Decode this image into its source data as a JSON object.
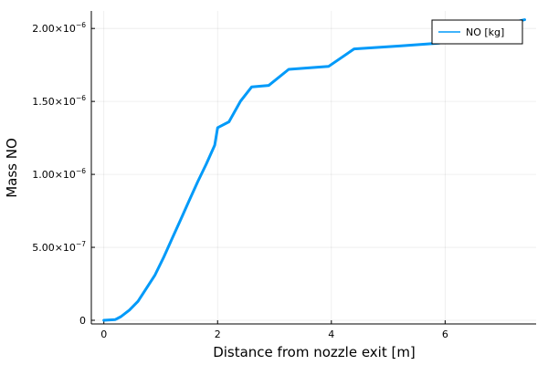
{
  "chart_data": {
    "type": "line",
    "title": "",
    "xlabel": "Distance from nozzle exit [m]",
    "ylabel": "Mass NO",
    "xlim": [
      -0.22,
      7.6
    ],
    "ylim": [
      -2.5e-08,
      2.12e-06
    ],
    "grid": true,
    "legend_position": "top-right",
    "x_ticks": [
      {
        "value": 0,
        "label": "0"
      },
      {
        "value": 2,
        "label": "2"
      },
      {
        "value": 4,
        "label": "4"
      },
      {
        "value": 6,
        "label": "6"
      }
    ],
    "y_ticks": [
      {
        "value": 0,
        "mantissa": "0",
        "exponent": ""
      },
      {
        "value": 5e-07,
        "mantissa": "5.00×10",
        "exponent": "−7"
      },
      {
        "value": 1e-06,
        "mantissa": "1.00×10",
        "exponent": "−6"
      },
      {
        "value": 1.5e-06,
        "mantissa": "1.50×10",
        "exponent": "−6"
      },
      {
        "value": 2e-06,
        "mantissa": "2.00×10",
        "exponent": "−6"
      }
    ],
    "series": [
      {
        "name": "NO [kg]",
        "color": "#009af9",
        "points": [
          [
            0.0,
            0.0
          ],
          [
            0.2,
            5e-09
          ],
          [
            0.3,
            2.5e-08
          ],
          [
            0.45,
            7e-08
          ],
          [
            0.6,
            1.3e-07
          ],
          [
            0.75,
            2.2e-07
          ],
          [
            0.9,
            3.1e-07
          ],
          [
            1.05,
            4.3e-07
          ],
          [
            1.2,
            5.6e-07
          ],
          [
            1.35,
            6.9e-07
          ],
          [
            1.5,
            8.2e-07
          ],
          [
            1.65,
            9.5e-07
          ],
          [
            1.8,
            1.07e-06
          ],
          [
            1.95,
            1.2e-06
          ],
          [
            2.0,
            1.32e-06
          ],
          [
            2.2,
            1.36e-06
          ],
          [
            2.4,
            1.5e-06
          ],
          [
            2.6,
            1.6e-06
          ],
          [
            2.9,
            1.61e-06
          ],
          [
            3.25,
            1.72e-06
          ],
          [
            3.95,
            1.74e-06
          ],
          [
            4.4,
            1.86e-06
          ],
          [
            5.2,
            1.88e-06
          ],
          [
            5.9,
            1.9e-06
          ],
          [
            6.5,
            1.98e-06
          ],
          [
            7.4,
            2.06e-06
          ]
        ]
      }
    ]
  }
}
